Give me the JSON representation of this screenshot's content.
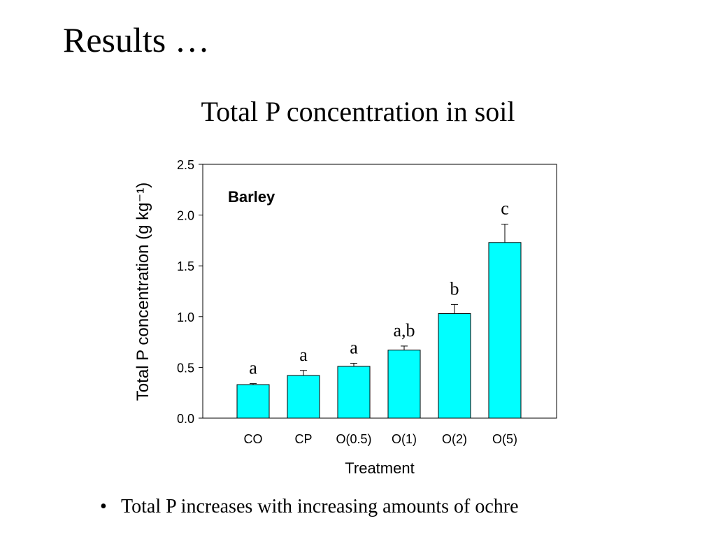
{
  "slide": {
    "title": "Results …",
    "bullet_text": "Total P increases with increasing amounts of ochre"
  },
  "chart_data": {
    "type": "bar",
    "title": "Total P concentration in soil",
    "panel_label": "Barley",
    "xlabel": "Treatment",
    "ylabel": "Total P concentration (g kg⁻¹)",
    "ylim": [
      0,
      2.5
    ],
    "yticks": [
      "0.0",
      "0.5",
      "1.0",
      "1.5",
      "2.0",
      "2.5"
    ],
    "categories": [
      "CO",
      "CP",
      "O(0.5)",
      "O(1)",
      "O(2)",
      "O(5)"
    ],
    "values": [
      0.33,
      0.42,
      0.51,
      0.67,
      1.03,
      1.73
    ],
    "errors": [
      0.01,
      0.05,
      0.03,
      0.04,
      0.09,
      0.18
    ],
    "significance": [
      "a",
      "a",
      "a",
      "a,b",
      "b",
      "c"
    ],
    "bar_color": "#00ffff",
    "grid": false,
    "legend": "none"
  }
}
